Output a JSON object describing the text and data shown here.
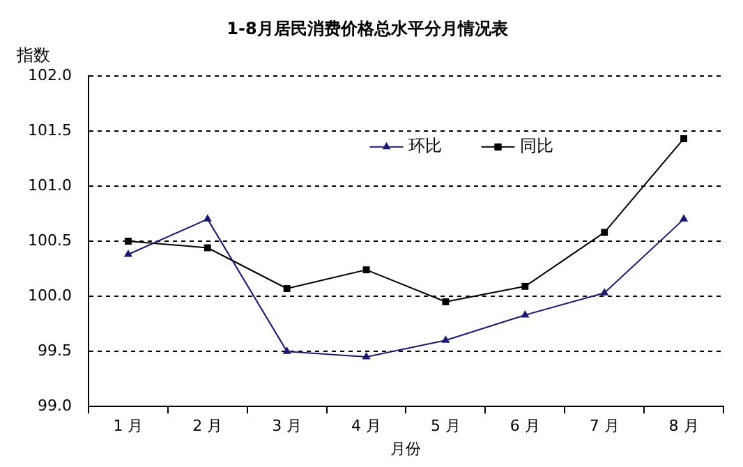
{
  "chart_data": {
    "type": "line",
    "title": "1-8月居民消费价格总水平分月情况表",
    "xlabel": "月份",
    "ylabel": "指数",
    "categories": [
      "1 月",
      "2 月",
      "3 月",
      "4 月",
      "5 月",
      "6 月",
      "7 月",
      "8 月"
    ],
    "series": [
      {
        "name": "环比",
        "color": "#1a1a6e",
        "marker": "triangle",
        "values": [
          100.38,
          100.7,
          99.5,
          99.45,
          99.6,
          99.83,
          100.03,
          100.7
        ]
      },
      {
        "name": "同比",
        "color": "#000000",
        "marker": "square",
        "values": [
          100.5,
          100.44,
          100.07,
          100.24,
          99.95,
          100.09,
          100.58,
          101.43
        ]
      }
    ],
    "ylim": [
      99.0,
      102.0
    ],
    "yticks": [
      {
        "value": 99,
        "label": "99.0"
      },
      {
        "value": 99.5,
        "label": "99.5"
      },
      {
        "value": 100,
        "label": "100.0"
      },
      {
        "value": 100.5,
        "label": "100.5"
      },
      {
        "value": 101,
        "label": "101.0"
      },
      {
        "value": 101.5,
        "label": "101.5"
      },
      {
        "value": 102,
        "label": "102.0"
      }
    ],
    "grid": "y",
    "legend": "top",
    "line_style": "solid"
  }
}
